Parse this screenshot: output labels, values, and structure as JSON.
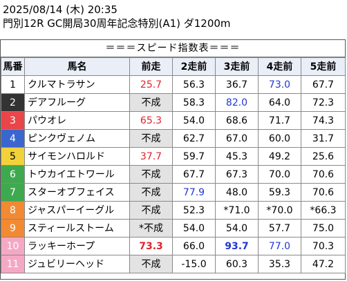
{
  "header": {
    "line1": "2025/08/14 (木) 20:35",
    "line2": "門別12R GC開局30周年記念特別(A1) ダ1200m"
  },
  "table": {
    "title": "＝＝＝スピード指数表＝＝＝",
    "columns": [
      "馬番",
      "馬名",
      "前走",
      "2走前",
      "3走前",
      "4走前",
      "5走前"
    ],
    "frame_colors": [
      "#ffffff",
      "#333333",
      "#e8464a",
      "#3a66cf",
      "#f2d23a",
      "#3fa94f",
      "#f28a33",
      "#f5a8c4"
    ],
    "rows": [
      {
        "no": "1",
        "frame": 1,
        "name": "クルマトラサン",
        "cells": [
          {
            "text": "25.7",
            "color": "red",
            "bold": false,
            "nc": false
          },
          {
            "text": "56.3",
            "color": "",
            "bold": false,
            "nc": false
          },
          {
            "text": "36.7",
            "color": "",
            "bold": false,
            "nc": false
          },
          {
            "text": "73.0",
            "color": "blue",
            "bold": false,
            "nc": false
          },
          {
            "text": "67.7",
            "color": "",
            "bold": false,
            "nc": false
          }
        ]
      },
      {
        "no": "2",
        "frame": 2,
        "name": "デアフルーグ",
        "cells": [
          {
            "text": "不成",
            "color": "",
            "bold": false,
            "nc": true
          },
          {
            "text": "58.3",
            "color": "",
            "bold": false,
            "nc": false
          },
          {
            "text": "82.0",
            "color": "blue",
            "bold": false,
            "nc": false
          },
          {
            "text": "64.0",
            "color": "",
            "bold": false,
            "nc": false
          },
          {
            "text": "72.3",
            "color": "",
            "bold": false,
            "nc": false
          }
        ]
      },
      {
        "no": "3",
        "frame": 3,
        "name": "パウオレ",
        "cells": [
          {
            "text": "65.3",
            "color": "red",
            "bold": false,
            "nc": false
          },
          {
            "text": "54.0",
            "color": "",
            "bold": false,
            "nc": false
          },
          {
            "text": "68.6",
            "color": "",
            "bold": false,
            "nc": false
          },
          {
            "text": "71.7",
            "color": "",
            "bold": false,
            "nc": false
          },
          {
            "text": "74.3",
            "color": "",
            "bold": false,
            "nc": false
          }
        ]
      },
      {
        "no": "4",
        "frame": 4,
        "name": "ピンクヴェノム",
        "cells": [
          {
            "text": "不成",
            "color": "",
            "bold": false,
            "nc": true
          },
          {
            "text": "62.7",
            "color": "",
            "bold": false,
            "nc": false
          },
          {
            "text": "67.0",
            "color": "",
            "bold": false,
            "nc": false
          },
          {
            "text": "60.0",
            "color": "",
            "bold": false,
            "nc": false
          },
          {
            "text": "31.7",
            "color": "",
            "bold": false,
            "nc": false
          }
        ]
      },
      {
        "no": "5",
        "frame": 5,
        "name": "サイモンハロルド",
        "cells": [
          {
            "text": "37.7",
            "color": "red",
            "bold": false,
            "nc": false
          },
          {
            "text": "59.7",
            "color": "",
            "bold": false,
            "nc": false
          },
          {
            "text": "45.3",
            "color": "",
            "bold": false,
            "nc": false
          },
          {
            "text": "49.2",
            "color": "",
            "bold": false,
            "nc": false
          },
          {
            "text": "25.6",
            "color": "",
            "bold": false,
            "nc": false
          }
        ]
      },
      {
        "no": "6",
        "frame": 6,
        "name": "トウカイエトワール",
        "cells": [
          {
            "text": "不成",
            "color": "",
            "bold": false,
            "nc": true
          },
          {
            "text": "67.7",
            "color": "",
            "bold": false,
            "nc": false
          },
          {
            "text": "67.3",
            "color": "",
            "bold": false,
            "nc": false
          },
          {
            "text": "70.0",
            "color": "",
            "bold": false,
            "nc": false
          },
          {
            "text": "70.6",
            "color": "",
            "bold": false,
            "nc": false
          }
        ]
      },
      {
        "no": "7",
        "frame": 6,
        "name": "スターオブフェイス",
        "cells": [
          {
            "text": "不成",
            "color": "",
            "bold": false,
            "nc": true
          },
          {
            "text": "77.9",
            "color": "blue",
            "bold": false,
            "nc": false
          },
          {
            "text": "48.0",
            "color": "",
            "bold": false,
            "nc": false
          },
          {
            "text": "59.3",
            "color": "",
            "bold": false,
            "nc": false
          },
          {
            "text": "70.6",
            "color": "",
            "bold": false,
            "nc": false
          }
        ]
      },
      {
        "no": "8",
        "frame": 7,
        "name": "ジャスパーイーグル",
        "cells": [
          {
            "text": "不成",
            "color": "",
            "bold": false,
            "nc": true
          },
          {
            "text": "52.3",
            "color": "",
            "bold": false,
            "nc": false
          },
          {
            "text": "*71.0",
            "color": "",
            "bold": false,
            "nc": false
          },
          {
            "text": "*70.0",
            "color": "",
            "bold": false,
            "nc": false
          },
          {
            "text": "*66.3",
            "color": "",
            "bold": false,
            "nc": false
          }
        ]
      },
      {
        "no": "9",
        "frame": 7,
        "name": "スティールストーム",
        "cells": [
          {
            "text": "*不成",
            "color": "",
            "bold": false,
            "nc": true
          },
          {
            "text": "54.0",
            "color": "",
            "bold": false,
            "nc": false
          },
          {
            "text": "54.0",
            "color": "",
            "bold": false,
            "nc": false
          },
          {
            "text": "57.7",
            "color": "",
            "bold": false,
            "nc": false
          },
          {
            "text": "75.0",
            "color": "",
            "bold": false,
            "nc": false
          }
        ]
      },
      {
        "no": "10",
        "frame": 8,
        "name": "ラッキーホープ",
        "cells": [
          {
            "text": "73.3",
            "color": "red",
            "bold": true,
            "nc": false
          },
          {
            "text": "66.0",
            "color": "",
            "bold": false,
            "nc": false
          },
          {
            "text": "93.7",
            "color": "blue",
            "bold": true,
            "nc": false
          },
          {
            "text": "77.0",
            "color": "blue",
            "bold": false,
            "nc": false
          },
          {
            "text": "70.3",
            "color": "",
            "bold": false,
            "nc": false
          }
        ]
      },
      {
        "no": "11",
        "frame": 8,
        "name": "ジュビリーヘッド",
        "cells": [
          {
            "text": "不成",
            "color": "",
            "bold": false,
            "nc": true
          },
          {
            "text": "-15.0",
            "color": "",
            "bold": false,
            "nc": false
          },
          {
            "text": "60.3",
            "color": "",
            "bold": false,
            "nc": false
          },
          {
            "text": "35.3",
            "color": "",
            "bold": false,
            "nc": false
          },
          {
            "text": "47.2",
            "color": "",
            "bold": false,
            "nc": false
          }
        ]
      }
    ]
  }
}
